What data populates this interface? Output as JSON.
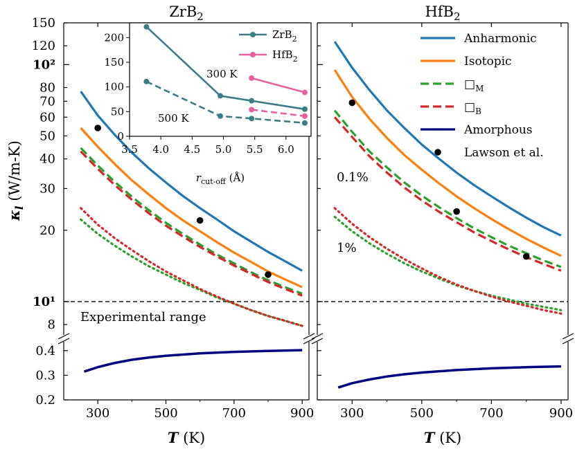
{
  "chart_data": {
    "type": "line",
    "titles": [
      "ZrB2",
      "HfB2"
    ],
    "xlabel": "T (K)",
    "ylabel": "κl (W/m-K)",
    "x_ticks": [
      300,
      500,
      700,
      900
    ],
    "upper_y_ticks": [
      "150",
      "120",
      "10²",
      "80",
      "70",
      "60",
      "50",
      "40",
      "30",
      "20",
      "10¹",
      "8"
    ],
    "lower_y_ticks": [
      "0.4",
      "0.3",
      "0.2"
    ],
    "upper_scale": "log",
    "upper_ylim": [
      7,
      150
    ],
    "lower_ylim": [
      0.2,
      0.45
    ],
    "xlim": [
      200,
      920
    ],
    "experimental_label": "Experimental range",
    "experimental_value": 10,
    "annotations": {
      "low_strain": "0.1%",
      "high_strain": "1%"
    },
    "legend": [
      {
        "label": "Anharmonic",
        "style": "solid",
        "color": "#1f77b4"
      },
      {
        "label": "Isotopic",
        "style": "solid",
        "color": "#ff7f0e"
      },
      {
        "label": "□M",
        "style": "dashed",
        "color": "#2ca02c"
      },
      {
        "label": "□B",
        "style": "dashed",
        "color": "#d62728"
      },
      {
        "label": "Amorphous",
        "style": "solid",
        "color": "#000080"
      },
      {
        "label": "Lawson et al.",
        "style": "marker",
        "color": "#000000"
      }
    ],
    "panels": [
      {
        "name": "ZrB2",
        "series": [
          {
            "name": "Anharmonic",
            "points": [
              [
                250,
                77
              ],
              [
                300,
                61
              ],
              [
                350,
                50.5
              ],
              [
                400,
                42.5
              ],
              [
                450,
                36.5
              ],
              [
                500,
                31.8
              ],
              [
                550,
                27.9
              ],
              [
                600,
                24.8
              ],
              [
                650,
                22.2
              ],
              [
                700,
                19.8
              ],
              [
                750,
                17.9
              ],
              [
                800,
                16.2
              ],
              [
                850,
                14.8
              ],
              [
                900,
                13.5
              ]
            ]
          },
          {
            "name": "Isotopic",
            "points": [
              [
                250,
                54
              ],
              [
                300,
                45
              ],
              [
                350,
                38
              ],
              [
                400,
                32.5
              ],
              [
                450,
                28.3
              ],
              [
                500,
                24.8
              ],
              [
                550,
                22
              ],
              [
                600,
                19.8
              ],
              [
                650,
                17.8
              ],
              [
                700,
                16.1
              ],
              [
                750,
                14.7
              ],
              [
                800,
                13.4
              ],
              [
                850,
                12.4
              ],
              [
                900,
                11.5
              ]
            ]
          },
          {
            "name": "□M",
            "points": [
              [
                250,
                44.5
              ],
              [
                300,
                37.5
              ],
              [
                350,
                32
              ],
              [
                400,
                27.7
              ],
              [
                450,
                24.3
              ],
              [
                500,
                21.5
              ],
              [
                550,
                19.3
              ],
              [
                600,
                17.4
              ],
              [
                650,
                15.8
              ],
              [
                700,
                14.5
              ],
              [
                750,
                13.3
              ],
              [
                800,
                12.3
              ],
              [
                850,
                11.5
              ],
              [
                900,
                10.8
              ]
            ]
          },
          {
            "name": "□B",
            "points": [
              [
                250,
                43
              ],
              [
                300,
                36.3
              ],
              [
                350,
                31
              ],
              [
                400,
                26.9
              ],
              [
                450,
                23.6
              ],
              [
                500,
                20.9
              ],
              [
                550,
                18.8
              ],
              [
                600,
                17
              ],
              [
                650,
                15.5
              ],
              [
                700,
                14.2
              ],
              [
                750,
                13.1
              ],
              [
                800,
                12.1
              ],
              [
                850,
                11.3
              ],
              [
                900,
                10.6
              ]
            ]
          },
          {
            "name": "□M 1%",
            "points": [
              [
                250,
                22.2
              ],
              [
                300,
                19.3
              ],
              [
                350,
                17.2
              ],
              [
                400,
                15.5
              ],
              [
                450,
                14.1
              ],
              [
                500,
                13
              ],
              [
                550,
                12
              ],
              [
                600,
                11.2
              ],
              [
                650,
                10.4
              ],
              [
                700,
                9.8
              ],
              [
                750,
                9.2
              ],
              [
                800,
                8.7
              ],
              [
                850,
                8.3
              ],
              [
                900,
                7.9
              ]
            ]
          },
          {
            "name": "□B 1%",
            "points": [
              [
                250,
                24.8
              ],
              [
                300,
                21.1
              ],
              [
                350,
                18.5
              ],
              [
                400,
                16.5
              ],
              [
                450,
                14.8
              ],
              [
                500,
                13.4
              ],
              [
                550,
                12.3
              ],
              [
                600,
                11.3
              ],
              [
                650,
                10.5
              ],
              [
                700,
                9.8
              ],
              [
                750,
                9.2
              ],
              [
                800,
                8.7
              ],
              [
                850,
                8.3
              ],
              [
                900,
                7.9
              ]
            ]
          },
          {
            "name": "Amorphous",
            "points": [
              [
                260,
                0.315
              ],
              [
                300,
                0.333
              ],
              [
                350,
                0.35
              ],
              [
                400,
                0.363
              ],
              [
                450,
                0.372
              ],
              [
                500,
                0.379
              ],
              [
                600,
                0.389
              ],
              [
                700,
                0.395
              ],
              [
                800,
                0.399
              ],
              [
                900,
                0.402
              ]
            ]
          }
        ],
        "lawson": [
          [
            300,
            54
          ],
          [
            600,
            22
          ],
          [
            800,
            13
          ]
        ]
      },
      {
        "name": "HfB2",
        "series": [
          {
            "name": "Anharmonic",
            "points": [
              [
                250,
                125
              ],
              [
                300,
                97
              ],
              [
                350,
                78
              ],
              [
                400,
                64
              ],
              [
                450,
                54
              ],
              [
                500,
                46
              ],
              [
                550,
                40
              ],
              [
                600,
                35
              ],
              [
                650,
                31
              ],
              [
                700,
                27.8
              ],
              [
                750,
                25
              ],
              [
                800,
                22.6
              ],
              [
                850,
                20.6
              ],
              [
                900,
                19
              ]
            ]
          },
          {
            "name": "Isotopic",
            "points": [
              [
                250,
                95
              ],
              [
                300,
                73
              ],
              [
                350,
                59
              ],
              [
                400,
                49
              ],
              [
                450,
                41.5
              ],
              [
                500,
                36
              ],
              [
                550,
                31.5
              ],
              [
                600,
                27.8
              ],
              [
                650,
                24.8
              ],
              [
                700,
                22.3
              ],
              [
                750,
                20.2
              ],
              [
                800,
                18.4
              ],
              [
                850,
                16.9
              ],
              [
                900,
                15.6
              ]
            ]
          },
          {
            "name": "□M",
            "points": [
              [
                250,
                64
              ],
              [
                300,
                52
              ],
              [
                350,
                43
              ],
              [
                400,
                36.8
              ],
              [
                450,
                31.8
              ],
              [
                500,
                28
              ],
              [
                550,
                25
              ],
              [
                600,
                22.5
              ],
              [
                650,
                20.4
              ],
              [
                700,
                18.7
              ],
              [
                750,
                17.2
              ],
              [
                800,
                16
              ],
              [
                850,
                14.9
              ],
              [
                900,
                14
              ]
            ]
          },
          {
            "name": "□B",
            "points": [
              [
                250,
                60
              ],
              [
                300,
                49.5
              ],
              [
                350,
                41
              ],
              [
                400,
                35
              ],
              [
                450,
                30.3
              ],
              [
                500,
                26.7
              ],
              [
                550,
                23.9
              ],
              [
                600,
                21.6
              ],
              [
                650,
                19.6
              ],
              [
                700,
                18
              ],
              [
                750,
                16.6
              ],
              [
                800,
                15.4
              ],
              [
                850,
                14.4
              ],
              [
                900,
                13.5
              ]
            ]
          },
          {
            "name": "□M 1%",
            "points": [
              [
                250,
                22.8
              ],
              [
                300,
                19.8
              ],
              [
                350,
                17.6
              ],
              [
                400,
                15.9
              ],
              [
                450,
                14.5
              ],
              [
                500,
                13.4
              ],
              [
                550,
                12.5
              ],
              [
                600,
                11.7
              ],
              [
                650,
                11.1
              ],
              [
                700,
                10.6
              ],
              [
                750,
                10.2
              ],
              [
                800,
                9.8
              ],
              [
                850,
                9.5
              ],
              [
                900,
                9.2
              ]
            ]
          },
          {
            "name": "□B 1%",
            "points": [
              [
                250,
                24.8
              ],
              [
                300,
                21.3
              ],
              [
                350,
                18.7
              ],
              [
                400,
                16.7
              ],
              [
                450,
                15.1
              ],
              [
                500,
                13.8
              ],
              [
                550,
                12.7
              ],
              [
                600,
                11.8
              ],
              [
                650,
                11.1
              ],
              [
                700,
                10.5
              ],
              [
                750,
                10
              ],
              [
                800,
                9.6
              ],
              [
                850,
                9.2
              ],
              [
                900,
                8.9
              ]
            ]
          },
          {
            "name": "Amorphous",
            "points": [
              [
                260,
                0.25
              ],
              [
                300,
                0.268
              ],
              [
                350,
                0.283
              ],
              [
                400,
                0.295
              ],
              [
                450,
                0.304
              ],
              [
                500,
                0.311
              ],
              [
                600,
                0.321
              ],
              [
                700,
                0.328
              ],
              [
                800,
                0.333
              ],
              [
                900,
                0.336
              ]
            ]
          }
        ],
        "lawson": [
          [
            300,
            69
          ],
          [
            600,
            24
          ],
          [
            800,
            15.5
          ]
        ]
      }
    ],
    "inset": {
      "xlabel": "r_cut-off (Å)",
      "x_ticks": [
        "3.5",
        "4.0",
        "4.5",
        "5.0",
        "5.5",
        "6.0"
      ],
      "y_ticks": [
        "0",
        "50",
        "100",
        "150",
        "200"
      ],
      "xlim": [
        3.5,
        6.4
      ],
      "ylim": [
        0,
        230
      ],
      "legend": [
        "ZrB2",
        "HfB2"
      ],
      "labels": [
        "300 K",
        "500 K"
      ],
      "series": [
        {
          "name": "ZrB2",
          "temperature": "300 K",
          "style": "solid",
          "color": "#3a7d85",
          "points": [
            [
              3.77,
              222
            ],
            [
              4.95,
              82
            ],
            [
              5.45,
              72
            ],
            [
              6.3,
              55
            ]
          ]
        },
        {
          "name": "ZrB2",
          "temperature": "500 K",
          "style": "dashed",
          "color": "#3a7d85",
          "points": [
            [
              3.77,
              111
            ],
            [
              4.95,
              41
            ],
            [
              5.45,
              36
            ],
            [
              6.3,
              27
            ]
          ]
        },
        {
          "name": "HfB2",
          "temperature": "300 K",
          "style": "solid",
          "color": "#e8609c",
          "points": [
            [
              5.45,
              118
            ],
            [
              6.3,
              89
            ]
          ]
        },
        {
          "name": "HfB2",
          "temperature": "500 K",
          "style": "dashed",
          "color": "#e8609c",
          "points": [
            [
              5.45,
              54
            ],
            [
              6.3,
              41
            ]
          ]
        }
      ]
    }
  }
}
